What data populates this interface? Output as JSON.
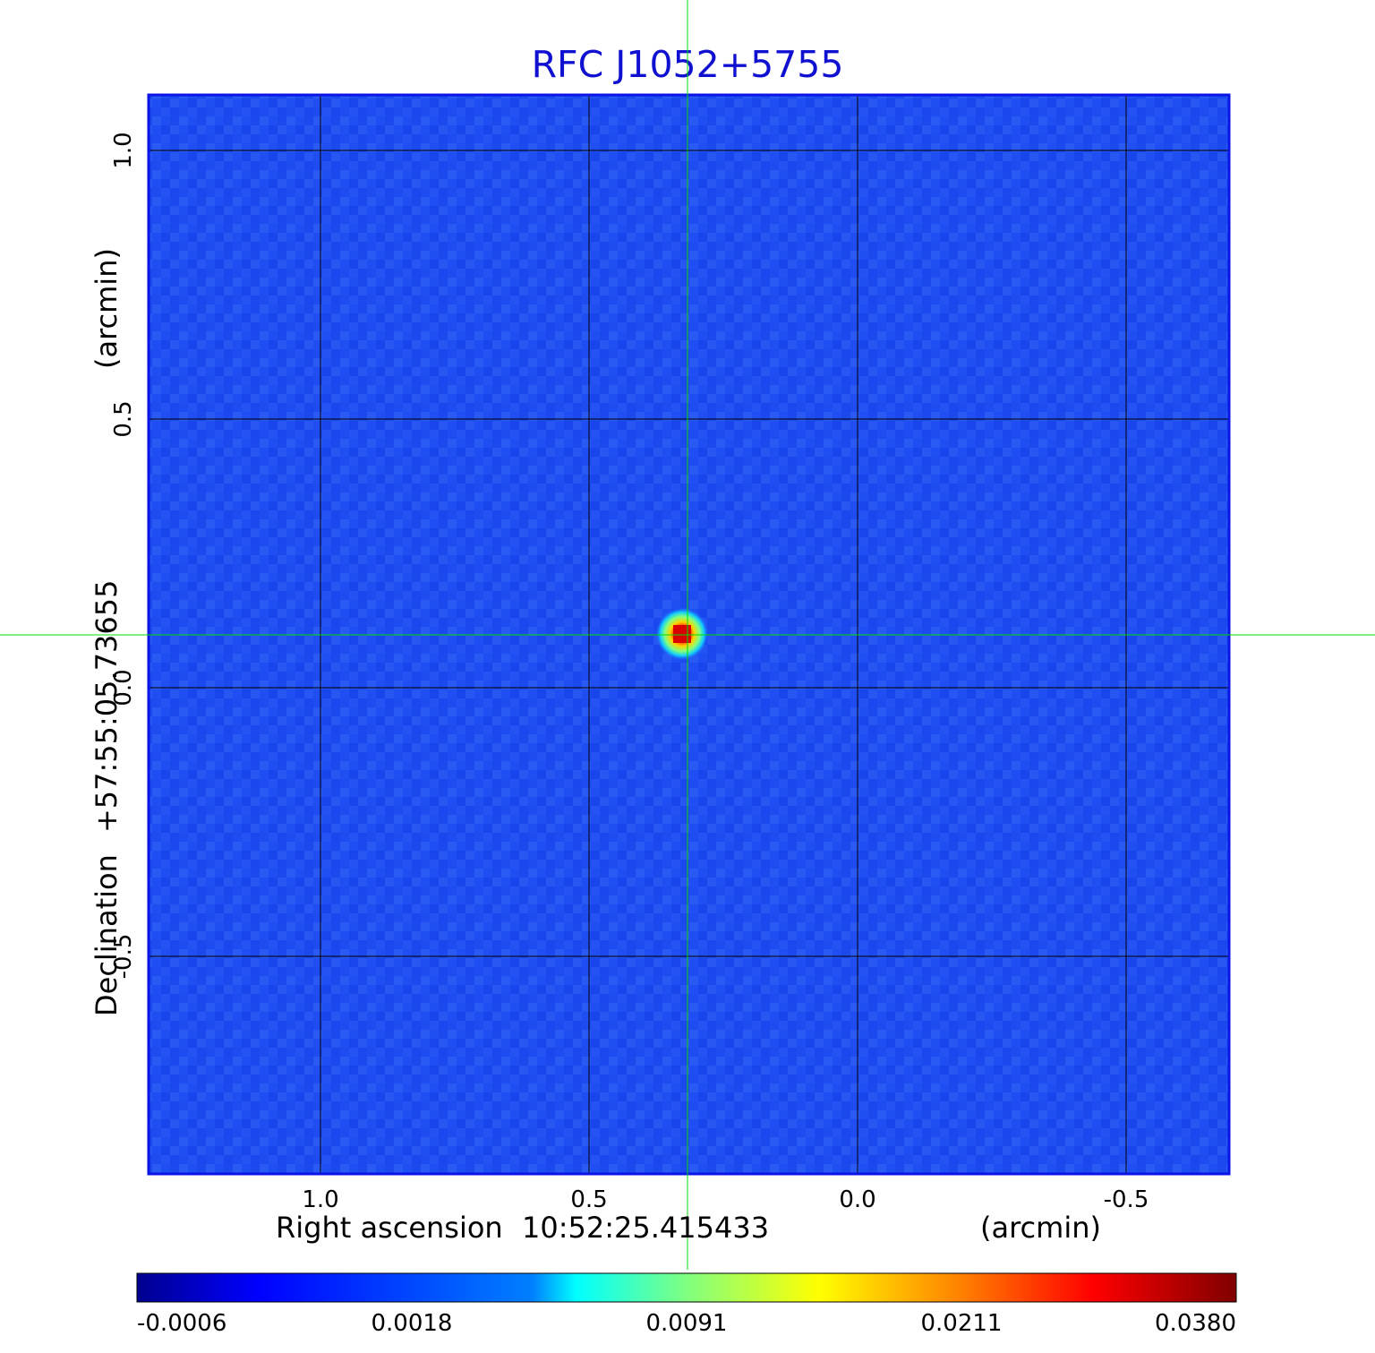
{
  "title": "RFC J1052+5755",
  "colors": {
    "title": "#1010d0",
    "frame": "#0a14e6",
    "grid": "#000000",
    "crosshair": "#00dd00",
    "background_map": "#1f4ef2"
  },
  "x_axis": {
    "label": "Right ascension",
    "center": "10:52:25.415433",
    "unit": "(arcmin)",
    "range_arcmin": [
      1.32,
      -0.69
    ],
    "ticks": [
      {
        "value": 1.0,
        "label": "1.0"
      },
      {
        "value": 0.5,
        "label": "0.5"
      },
      {
        "value": 0.0,
        "label": "0.0"
      },
      {
        "value": -0.5,
        "label": "-0.5"
      }
    ]
  },
  "y_axis": {
    "label": "Declination",
    "center": "+57:55:05.73655",
    "unit": "(arcmin)",
    "range_arcmin": [
      -0.9,
      1.1
    ],
    "ticks": [
      {
        "value": -0.5,
        "label": "-0.5"
      },
      {
        "value": 0.0,
        "label": "0.0"
      },
      {
        "value": 0.5,
        "label": "0.5"
      },
      {
        "value": 1.0,
        "label": "1.0"
      }
    ]
  },
  "source": {
    "ra_offset_arcmin": 0.32,
    "dec_offset_arcmin": 0.1
  },
  "colorbar": {
    "colormap": "jet",
    "labels": [
      "-0.0006",
      "0.0018",
      "0.0091",
      "0.0211",
      "0.0380"
    ],
    "stops": [
      "#00008f",
      "#0000ff",
      "#0080ff",
      "#00ffff",
      "#80ff80",
      "#ffff00",
      "#ff8000",
      "#ff0000",
      "#800000"
    ]
  }
}
